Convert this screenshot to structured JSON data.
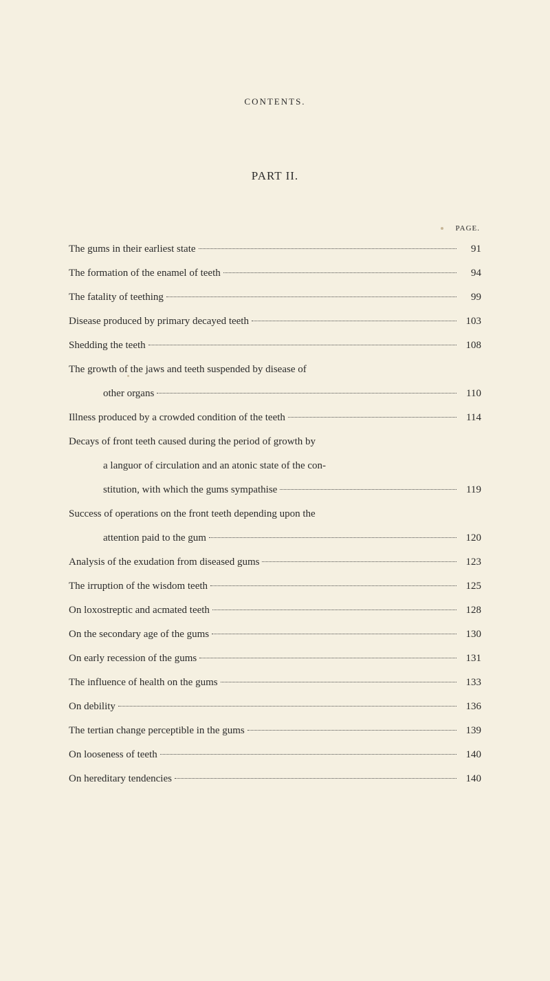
{
  "header": "CONTENTS.",
  "partTitle": "PART II.",
  "pageLabel": "PAGE.",
  "entries": [
    {
      "text": "The gums in their earliest state",
      "page": "91",
      "indent": false
    },
    {
      "text": "The formation of the enamel of teeth",
      "page": "94",
      "indent": false
    },
    {
      "text": "The fatality of teething",
      "page": "99",
      "indent": false
    },
    {
      "text": "Disease produced by primary decayed teeth",
      "page": "103",
      "indent": false
    },
    {
      "text": "Shedding the teeth",
      "page": "108",
      "indent": false
    },
    {
      "text": "The growth of the jaws and teeth suspended by disease of",
      "page": "",
      "indent": false,
      "noDots": true
    },
    {
      "text": "other organs",
      "page": "110",
      "indent": true
    },
    {
      "text": "Illness produced by a crowded condition of the teeth",
      "page": "114",
      "indent": false
    },
    {
      "text": "Decays of front teeth caused during the period of growth by",
      "page": "",
      "indent": false,
      "noDots": true
    },
    {
      "text": "a languor of circulation and an atonic state of the con-",
      "page": "",
      "indent": true,
      "noDots": true
    },
    {
      "text": "stitution, with which the gums sympathise",
      "page": "119",
      "indent": true
    },
    {
      "text": "Success of operations on the front teeth depending upon the",
      "page": "",
      "indent": false,
      "noDots": true
    },
    {
      "text": "attention paid to the gum",
      "page": "120",
      "indent": true
    },
    {
      "text": "Analysis of the exudation from diseased gums",
      "page": "123",
      "indent": false
    },
    {
      "text": "The irruption of the wisdom teeth",
      "page": "125",
      "indent": false
    },
    {
      "text": "On loxostreptic and acmated teeth",
      "page": "128",
      "indent": false
    },
    {
      "text": "On the secondary age of the gums",
      "page": "130",
      "indent": false
    },
    {
      "text": "On early recession of the gums",
      "page": "131",
      "indent": false
    },
    {
      "text": "The influence of health on the gums",
      "page": "133",
      "indent": false
    },
    {
      "text": "On debility",
      "page": "136",
      "indent": false
    },
    {
      "text": "The tertian change perceptible in the gums",
      "page": "139",
      "indent": false
    },
    {
      "text": "On looseness of teeth",
      "page": "140",
      "indent": false
    },
    {
      "text": "On hereditary tendencies",
      "page": "140",
      "indent": false
    }
  ],
  "colors": {
    "background": "#f5f0e1",
    "text": "#2a2a2a",
    "dots": "#4a4a4a"
  }
}
